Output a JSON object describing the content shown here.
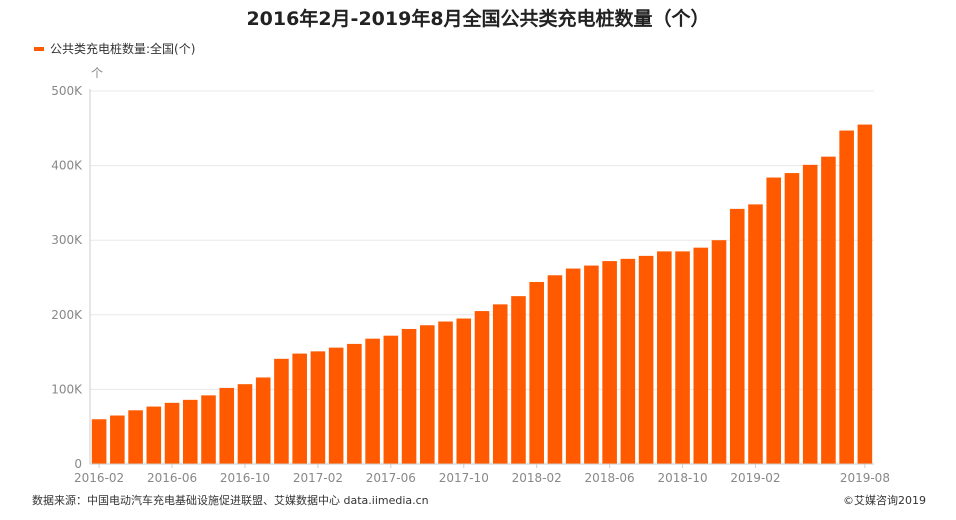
{
  "chart_data": {
    "type": "bar",
    "title": "2016年2月-2019年8月全国公共类充电桩数量（个）",
    "legend": [
      "公共类充电桩数量:全国(个)"
    ],
    "legend_placement": "top-left",
    "y_unit_label": "个",
    "ylim": [
      0,
      500000
    ],
    "yticks": [
      0,
      100000,
      200000,
      300000,
      400000,
      500000
    ],
    "ytick_labels": [
      "0",
      "100K",
      "200K",
      "300K",
      "400K",
      "500K"
    ],
    "grid": true,
    "x_tick_labels": [
      "2016-02",
      "2016-06",
      "2016-10",
      "2017-02",
      "2017-06",
      "2017-10",
      "2018-02",
      "2018-06",
      "2018-10",
      "2019-02",
      "2019-08"
    ],
    "categories": [
      "2016-02",
      "2016-03",
      "2016-04",
      "2016-05",
      "2016-06",
      "2016-07",
      "2016-08",
      "2016-09",
      "2016-10",
      "2016-11",
      "2016-12",
      "2017-01",
      "2017-02",
      "2017-03",
      "2017-04",
      "2017-05",
      "2017-06",
      "2017-07",
      "2017-08",
      "2017-09",
      "2017-10",
      "2017-11",
      "2017-12",
      "2018-01",
      "2018-02",
      "2018-03",
      "2018-04",
      "2018-05",
      "2018-06",
      "2018-07",
      "2018-08",
      "2018-09",
      "2018-10",
      "2018-11",
      "2018-12",
      "2019-01",
      "2019-02",
      "2019-03",
      "2019-04",
      "2019-05",
      "2019-06",
      "2019-07",
      "2019-08"
    ],
    "series": [
      {
        "name": "公共类充电桩数量:全国(个)",
        "color": "#ff5a00",
        "values": [
          60000,
          65000,
          72000,
          77000,
          82000,
          86000,
          92000,
          102000,
          107000,
          116000,
          141000,
          148000,
          151000,
          156000,
          161000,
          168000,
          172000,
          181000,
          186000,
          191000,
          195000,
          205000,
          214000,
          225000,
          244000,
          253000,
          262000,
          266000,
          272000,
          275000,
          279000,
          285000,
          285000,
          290000,
          300000,
          342000,
          348000,
          384000,
          390000,
          401000,
          412000,
          447000,
          455000
        ]
      }
    ]
  },
  "footer": {
    "source": "数据来源：中国电动汽车充电基础设施促进联盟、艾媒数据中心 data.iimedia.cn",
    "copyright": "©艾媒咨询2019"
  }
}
